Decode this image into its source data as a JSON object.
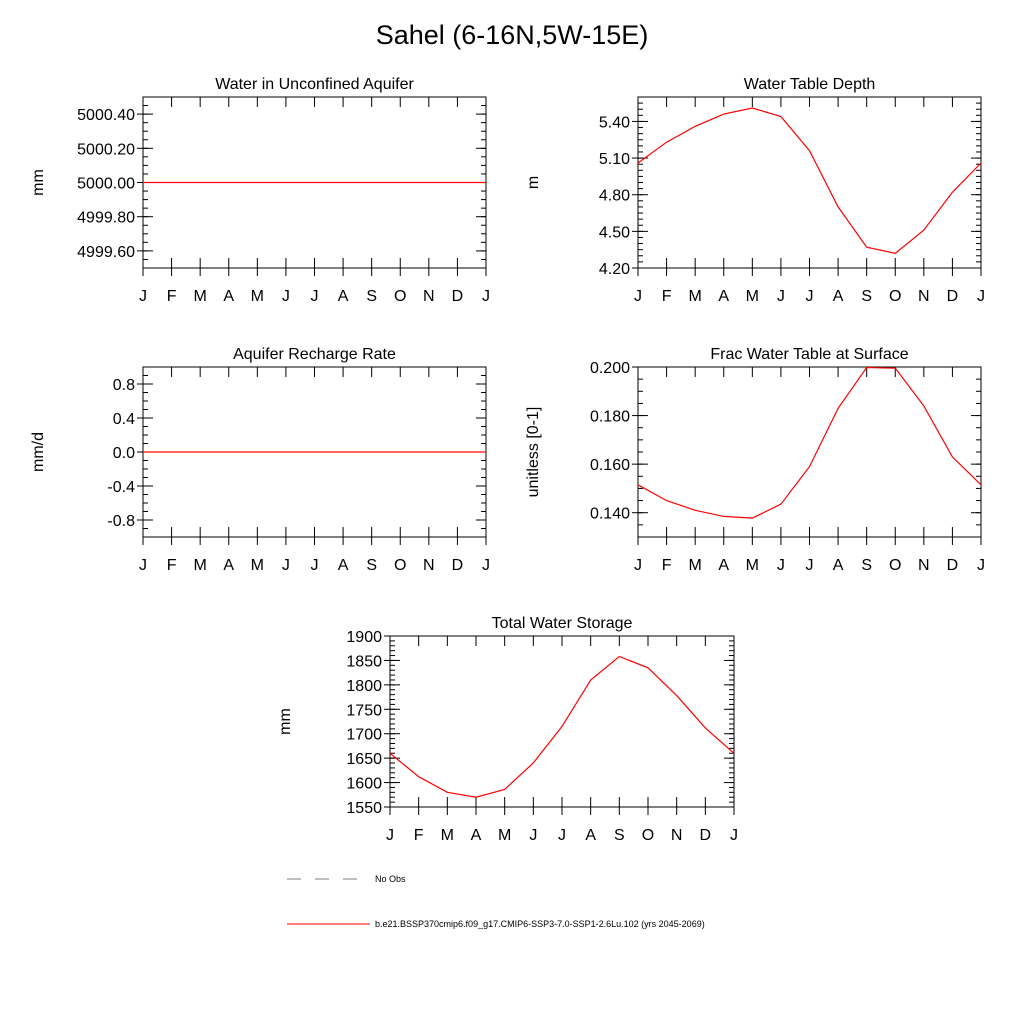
{
  "page": {
    "title": "Sahel (6-16N,5W-15E)"
  },
  "months": [
    "J",
    "F",
    "M",
    "A",
    "M",
    "J",
    "J",
    "A",
    "S",
    "O",
    "N",
    "D",
    "J"
  ],
  "chart_data": [
    {
      "id": "aquifer",
      "type": "line",
      "title": "Water in Unconfined Aquifer",
      "xlabel": "",
      "ylabel": "mm",
      "ylim": [
        4999.5,
        5000.5
      ],
      "yticks": [
        4999.6,
        4999.8,
        5000.0,
        5000.2,
        5000.4
      ],
      "ytick_labels": [
        "4999.60",
        "4999.80",
        "5000.00",
        "5000.20",
        "5000.40"
      ],
      "yminor": 0.05,
      "series": [
        {
          "color": "#ff0000",
          "values": [
            5000,
            5000,
            5000,
            5000,
            5000,
            5000,
            5000,
            5000,
            5000,
            5000,
            5000,
            5000,
            5000
          ]
        }
      ]
    },
    {
      "id": "wtd",
      "type": "line",
      "title": "Water Table Depth",
      "xlabel": "",
      "ylabel": "m",
      "ylim": [
        4.2,
        5.6
      ],
      "yticks": [
        4.2,
        4.5,
        4.8,
        5.1,
        5.4
      ],
      "ytick_labels": [
        "4.20",
        "4.50",
        "4.80",
        "5.10",
        "5.40"
      ],
      "yminor": 0.05,
      "series": [
        {
          "color": "#ff0000",
          "values": [
            5.06,
            5.23,
            5.36,
            5.46,
            5.51,
            5.44,
            5.16,
            4.7,
            4.37,
            4.32,
            4.51,
            4.82,
            5.06
          ]
        }
      ]
    },
    {
      "id": "recharge",
      "type": "line",
      "title": "Aquifer Recharge Rate",
      "xlabel": "",
      "ylabel": "mm/d",
      "ylim": [
        -1.0,
        1.0
      ],
      "yticks": [
        -0.8,
        -0.4,
        0.0,
        0.4,
        0.8
      ],
      "ytick_labels": [
        "-0.8",
        "-0.4",
        "0.0",
        "0.4",
        "0.8"
      ],
      "yminor": 0.1,
      "series": [
        {
          "color": "#ff0000",
          "values": [
            0,
            0,
            0,
            0,
            0,
            0,
            0,
            0,
            0,
            0,
            0,
            0,
            0
          ]
        }
      ]
    },
    {
      "id": "frac",
      "type": "line",
      "title": "Frac Water Table at Surface",
      "xlabel": "",
      "ylabel": "unitless [0-1]",
      "ylim": [
        0.13,
        0.2
      ],
      "yticks": [
        0.14,
        0.16,
        0.18,
        0.2
      ],
      "ytick_labels": [
        "0.140",
        "0.160",
        "0.180",
        "0.200"
      ],
      "yminor": 0.005,
      "series": [
        {
          "color": "#ff0000",
          "values": [
            0.1515,
            0.145,
            0.141,
            0.1385,
            0.1378,
            0.1435,
            0.159,
            0.183,
            0.1998,
            0.1995,
            0.184,
            0.163,
            0.1515
          ]
        }
      ]
    },
    {
      "id": "tws",
      "type": "line",
      "title": "Total Water Storage",
      "xlabel": "",
      "ylabel": "mm",
      "ylim": [
        1550,
        1900
      ],
      "yticks": [
        1550,
        1600,
        1650,
        1700,
        1750,
        1800,
        1850,
        1900
      ],
      "ytick_labels": [
        "1550",
        "1600",
        "1650",
        "1700",
        "1750",
        "1800",
        "1850",
        "1900"
      ],
      "yminor": 10,
      "series": [
        {
          "color": "#ff0000",
          "values": [
            1660,
            1612,
            1580,
            1570,
            1586,
            1640,
            1715,
            1810,
            1858,
            1835,
            1778,
            1712,
            1660
          ]
        }
      ]
    }
  ],
  "legend": {
    "items": [
      {
        "label": "No Obs",
        "color": "#808080",
        "style": "dashed"
      },
      {
        "label": "b.e21.BSSP370cmip6.f09_g17.CMIP6-SSP3-7.0-SSP1-2.6Lu.102 (yrs 2045-2069)",
        "color": "#ff0000",
        "style": "solid"
      }
    ]
  }
}
